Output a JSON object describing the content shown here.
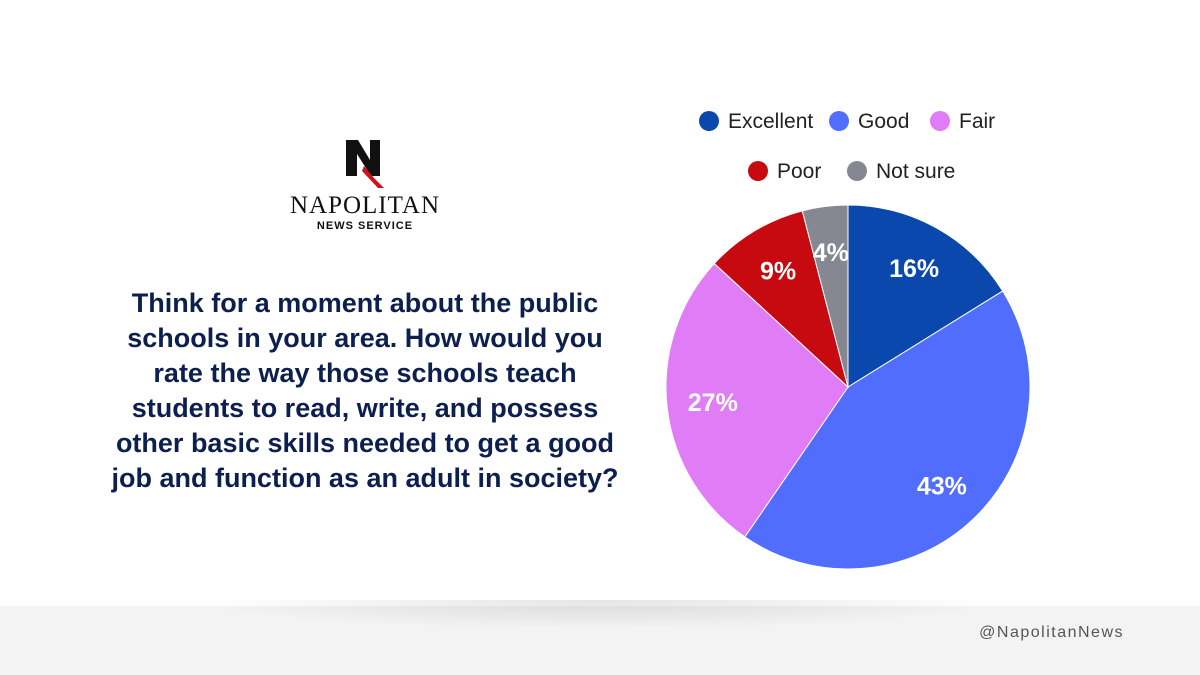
{
  "brand": {
    "name": "NAPOLITAN",
    "subtitle": "NEWS SERVICE",
    "handle": "@NapolitanNews",
    "colors": {
      "navy": "#0d1f4f",
      "red": "#d0111b"
    }
  },
  "question": "Think for a moment about the public schools in your area. How would you rate the way those schools teach students to read, write, and possess other basic skills needed to get a good job and function as an adult in society?",
  "chart_data": {
    "type": "pie",
    "legend_position": "top",
    "slices": [
      {
        "label": "Excellent",
        "value": 16,
        "display": "16%",
        "color": "#0b48ad"
      },
      {
        "label": "Good",
        "value": 43,
        "display": "43%",
        "color": "#506dfd"
      },
      {
        "label": "Fair",
        "value": 27,
        "display": "27%",
        "color": "#e07cf6"
      },
      {
        "label": "Poor",
        "value": 9,
        "display": "9%",
        "color": "#c70a10"
      },
      {
        "label": "Not sure",
        "value": 4,
        "display": "4%",
        "color": "#858890"
      }
    ]
  }
}
